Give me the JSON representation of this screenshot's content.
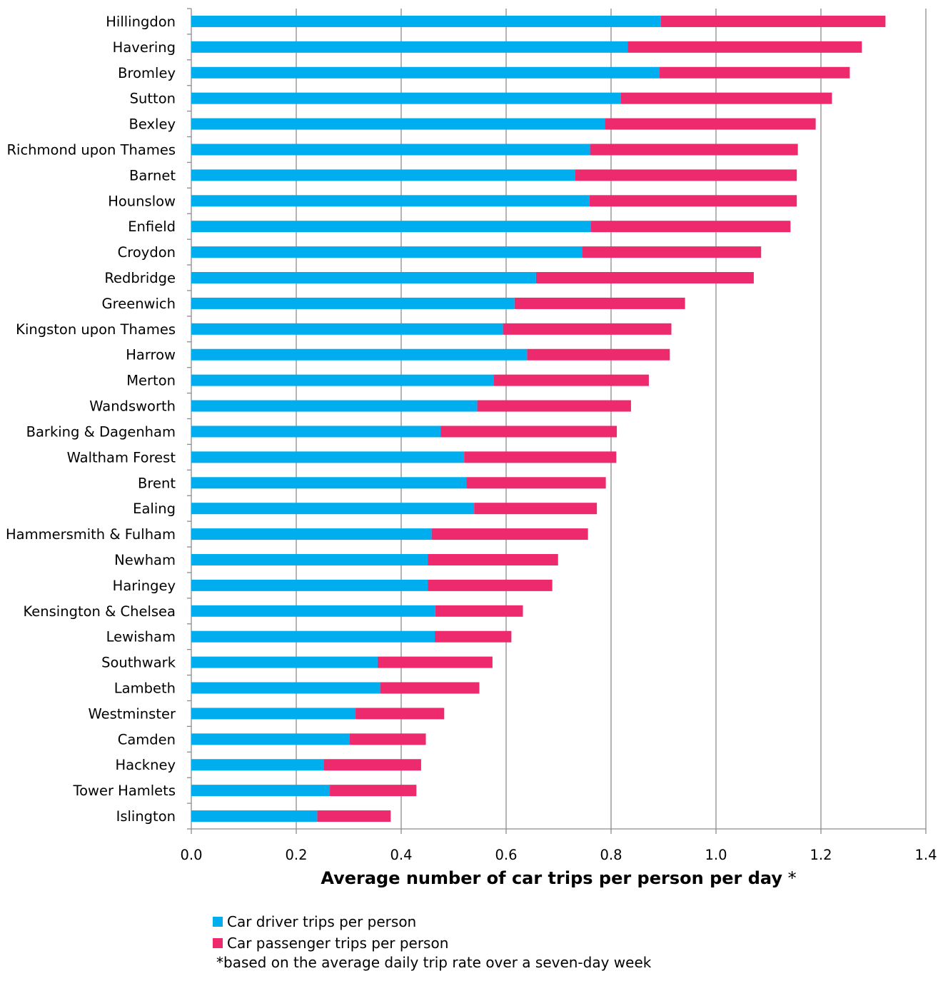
{
  "chart_data": {
    "type": "bar",
    "orientation": "horizontal",
    "stacked": true,
    "categories": [
      "Hillingdon",
      "Havering",
      "Bromley",
      "Sutton",
      "Bexley",
      "Richmond upon Thames",
      "Barnet",
      "Hounslow",
      "Enfield",
      "Croydon",
      "Redbridge",
      "Greenwich",
      "Kingston upon Thames",
      "Harrow",
      "Merton",
      "Wandsworth",
      "Barking & Dagenham",
      "Waltham Forest",
      "Brent",
      "Ealing",
      "Hammersmith & Fulham",
      "Newham",
      "Haringey",
      "Kensington & Chelsea",
      "Lewisham",
      "Southwark",
      "Lambeth",
      "Westminster",
      "Camden",
      "Hackney",
      "Tower Hamlets",
      "Islington"
    ],
    "series": [
      {
        "name": "Car driver trips per person",
        "color": "#00AEEF",
        "values": [
          0.895,
          0.832,
          0.892,
          0.818,
          0.788,
          0.76,
          0.731,
          0.759,
          0.761,
          0.745,
          0.657,
          0.616,
          0.594,
          0.64,
          0.576,
          0.545,
          0.475,
          0.52,
          0.524,
          0.539,
          0.458,
          0.451,
          0.451,
          0.465,
          0.464,
          0.355,
          0.36,
          0.313,
          0.302,
          0.252,
          0.264,
          0.24
        ]
      },
      {
        "name": "Car passenger trips per person",
        "color": "#EE2A6E",
        "values": [
          0.428,
          0.446,
          0.363,
          0.403,
          0.402,
          0.396,
          0.423,
          0.395,
          0.381,
          0.341,
          0.415,
          0.325,
          0.321,
          0.272,
          0.296,
          0.293,
          0.336,
          0.29,
          0.266,
          0.234,
          0.298,
          0.248,
          0.237,
          0.167,
          0.146,
          0.219,
          0.189,
          0.169,
          0.145,
          0.186,
          0.165,
          0.14
        ]
      }
    ],
    "xlim": [
      0,
      1.4
    ],
    "xticks": [
      "0.0",
      "0.2",
      "0.4",
      "0.6",
      "0.8",
      "1.0",
      "1.2",
      "1.4"
    ],
    "xlabel": "Average number of car trips per person per day",
    "xlabel_suffix": " *",
    "footnote": "*based on the average daily trip rate over a seven-day week",
    "grid": "vertical",
    "legend": "bottom"
  }
}
